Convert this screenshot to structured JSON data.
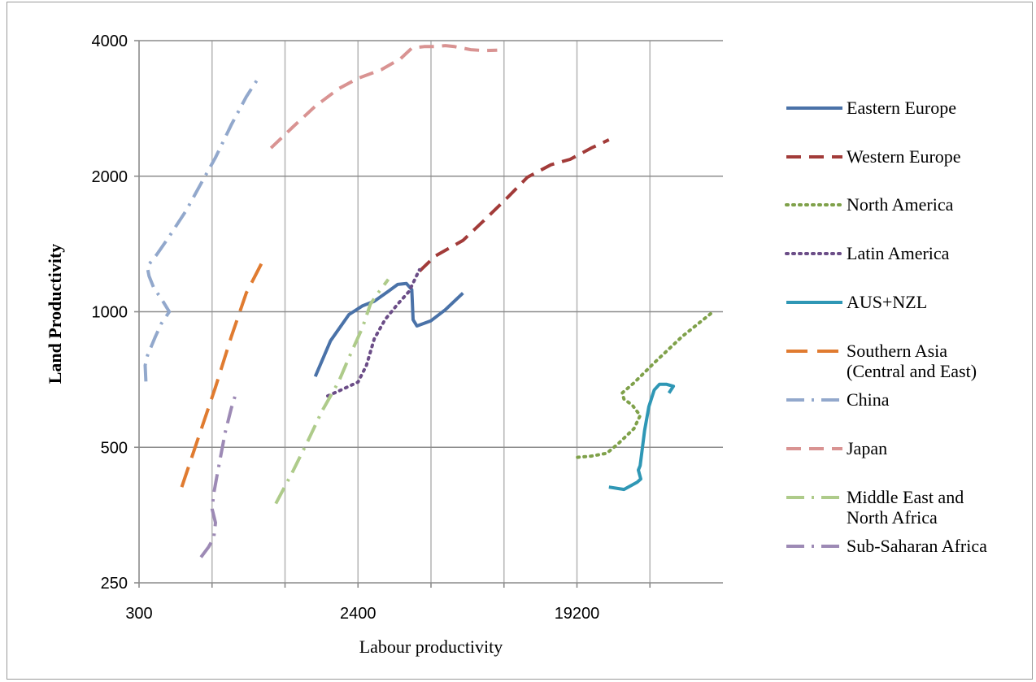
{
  "chart_data": {
    "type": "line",
    "title": "",
    "xlabel": "Labour productivity",
    "ylabel": "Land Productivity",
    "x_scale": "log",
    "y_scale": "log",
    "xlim": [
      300,
      76800
    ],
    "ylim": [
      250,
      4000
    ],
    "x_ticks": [
      {
        "value": 300,
        "label": "300"
      },
      {
        "value": 2400,
        "label": "2400"
      },
      {
        "value": 19200,
        "label": "19200"
      }
    ],
    "x_gridlines": [
      600,
      1200,
      2400,
      4800,
      9600,
      19200,
      38400
    ],
    "y_ticks": [
      {
        "value": 250,
        "label": "250"
      },
      {
        "value": 500,
        "label": "500"
      },
      {
        "value": 1000,
        "label": "1000"
      },
      {
        "value": 2000,
        "label": "2000"
      },
      {
        "value": 4000,
        "label": "4000"
      }
    ],
    "grid": true,
    "legend_position": "right",
    "series": [
      {
        "name": "Eastern Europe",
        "color": "#4a72a8",
        "style": "solid",
        "points": [
          [
            1600,
            718
          ],
          [
            1850,
            862
          ],
          [
            2200,
            985
          ],
          [
            2500,
            1030
          ],
          [
            2800,
            1055
          ],
          [
            3200,
            1110
          ],
          [
            3500,
            1150
          ],
          [
            3800,
            1155
          ],
          [
            4000,
            1120
          ],
          [
            4050,
            960
          ],
          [
            4200,
            930
          ],
          [
            4800,
            955
          ],
          [
            5500,
            1010
          ],
          [
            6500,
            1100
          ]
        ]
      },
      {
        "name": "Western Europe",
        "color": "#a23b39",
        "style": "dashed",
        "points": [
          [
            4300,
            1230
          ],
          [
            5000,
            1330
          ],
          [
            6500,
            1440
          ],
          [
            8000,
            1600
          ],
          [
            10000,
            1800
          ],
          [
            12000,
            1990
          ],
          [
            15000,
            2120
          ],
          [
            18000,
            2180
          ],
          [
            22000,
            2310
          ],
          [
            26000,
            2410
          ]
        ]
      },
      {
        "name": "North America",
        "color": "#7fa14a",
        "style": "dotted",
        "points": [
          [
            19300,
            475
          ],
          [
            22000,
            478
          ],
          [
            25500,
            485
          ],
          [
            28500,
            510
          ],
          [
            33000,
            550
          ],
          [
            35000,
            588
          ],
          [
            32500,
            620
          ],
          [
            30000,
            640
          ],
          [
            29500,
            660
          ],
          [
            33000,
            695
          ],
          [
            40000,
            770
          ],
          [
            52000,
            880
          ],
          [
            70000,
            1000
          ]
        ]
      },
      {
        "name": "Latin America",
        "color": "#6b4d87",
        "style": "dotted",
        "points": [
          [
            1800,
            650
          ],
          [
            2100,
            675
          ],
          [
            2400,
            698
          ],
          [
            2600,
            760
          ],
          [
            2800,
            870
          ],
          [
            3100,
            960
          ],
          [
            3500,
            1040
          ],
          [
            3900,
            1110
          ],
          [
            4300,
            1240
          ]
        ]
      },
      {
        "name": "AUS+NZL",
        "color": "#2f97b5",
        "style": "solid",
        "points": [
          [
            26000,
            408
          ],
          [
            30000,
            403
          ],
          [
            34000,
            418
          ],
          [
            35200,
            425
          ],
          [
            34400,
            445
          ],
          [
            35000,
            455
          ],
          [
            36500,
            545
          ],
          [
            38000,
            615
          ],
          [
            40000,
            670
          ],
          [
            42000,
            690
          ],
          [
            45000,
            690
          ],
          [
            48000,
            683
          ],
          [
            46000,
            660
          ]
        ]
      },
      {
        "name": "Southern  Asia (Central and East)",
        "color": "#e07b30",
        "style": "longdash",
        "points": [
          [
            450,
            408
          ],
          [
            530,
            530
          ],
          [
            620,
            680
          ],
          [
            720,
            880
          ],
          [
            830,
            1100
          ],
          [
            960,
            1280
          ]
        ]
      },
      {
        "name": "China",
        "color": "#92a8cc",
        "style": "dashdot",
        "points": [
          [
            320,
            700
          ],
          [
            318,
            760
          ],
          [
            325,
            800
          ],
          [
            350,
            880
          ],
          [
            370,
            940
          ],
          [
            400,
            1000
          ],
          [
            370,
            1070
          ],
          [
            345,
            1130
          ],
          [
            330,
            1200
          ],
          [
            324,
            1260
          ],
          [
            355,
            1340
          ],
          [
            400,
            1470
          ],
          [
            470,
            1680
          ],
          [
            550,
            1960
          ],
          [
            620,
            2200
          ],
          [
            720,
            2600
          ],
          [
            830,
            3000
          ],
          [
            930,
            3300
          ]
        ]
      },
      {
        "name": "Japan",
        "color": "#d99392",
        "style": "dashed",
        "points": [
          [
            1050,
            2310
          ],
          [
            1300,
            2580
          ],
          [
            1600,
            2860
          ],
          [
            2000,
            3130
          ],
          [
            2400,
            3300
          ],
          [
            3000,
            3450
          ],
          [
            3600,
            3650
          ],
          [
            4000,
            3850
          ],
          [
            4500,
            3880
          ],
          [
            5000,
            3880
          ],
          [
            5500,
            3900
          ],
          [
            6000,
            3880
          ],
          [
            7000,
            3820
          ],
          [
            8000,
            3800
          ],
          [
            9000,
            3810
          ]
        ]
      },
      {
        "name": "Middle East and North Africa",
        "color": "#aecb8a",
        "style": "dashdot",
        "points": [
          [
            1100,
            375
          ],
          [
            1300,
            445
          ],
          [
            1500,
            520
          ],
          [
            1700,
            600
          ],
          [
            2000,
            700
          ],
          [
            2200,
            790
          ],
          [
            2500,
            920
          ],
          [
            2700,
            1040
          ],
          [
            2900,
            1100
          ],
          [
            3200,
            1180
          ]
        ]
      },
      {
        "name": "Sub-Saharan Africa",
        "color": "#9d8ab5",
        "style": "dashdot",
        "points": [
          [
            540,
            285
          ],
          [
            580,
            300
          ],
          [
            610,
            315
          ],
          [
            620,
            340
          ],
          [
            600,
            365
          ],
          [
            610,
            395
          ],
          [
            630,
            435
          ],
          [
            650,
            475
          ],
          [
            680,
            540
          ],
          [
            720,
            610
          ],
          [
            760,
            670
          ]
        ]
      }
    ]
  }
}
